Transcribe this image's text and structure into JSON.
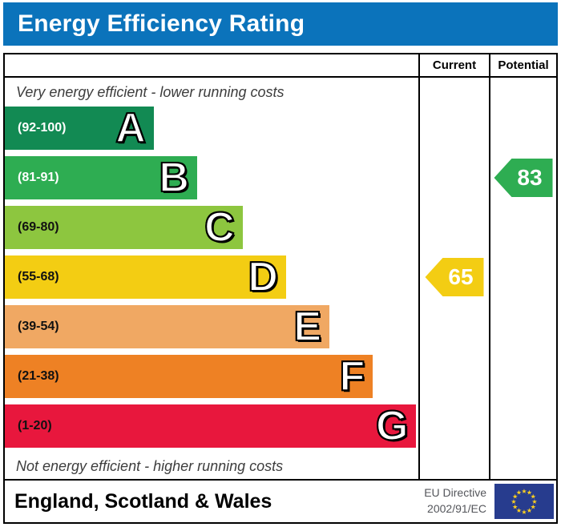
{
  "title_bar": {
    "title": "Energy Efficiency Rating",
    "bg_color": "#0b73bb",
    "text_color": "#ffffff"
  },
  "table": {
    "current_label": "Current",
    "potential_label": "Potential"
  },
  "notes": {
    "top": "Very energy efficient - lower running costs",
    "bottom": "Not energy efficient - higher running costs"
  },
  "chart_data": {
    "type": "bar",
    "title": "Energy Efficiency Rating",
    "categories": [
      "A",
      "B",
      "C",
      "D",
      "E",
      "F",
      "G"
    ],
    "bands": [
      {
        "letter": "A",
        "range_label": "(92-100)",
        "min": 92,
        "max": 100,
        "color": "#128a53",
        "label_color": "#ffffff",
        "width_pct": 36
      },
      {
        "letter": "B",
        "range_label": "(81-91)",
        "min": 81,
        "max": 91,
        "color": "#2ead52",
        "label_color": "#ffffff",
        "width_pct": 46.5
      },
      {
        "letter": "C",
        "range_label": "(69-80)",
        "min": 69,
        "max": 80,
        "color": "#8dc63f",
        "label_color": "#111111",
        "width_pct": 57.5
      },
      {
        "letter": "D",
        "range_label": "(55-68)",
        "min": 55,
        "max": 68,
        "color": "#f3cd13",
        "label_color": "#111111",
        "width_pct": 68
      },
      {
        "letter": "E",
        "range_label": "(39-54)",
        "min": 39,
        "max": 54,
        "color": "#f0a863",
        "label_color": "#111111",
        "width_pct": 78.5
      },
      {
        "letter": "F",
        "range_label": "(21-38)",
        "min": 21,
        "max": 38,
        "color": "#ee8124",
        "label_color": "#111111",
        "width_pct": 89
      },
      {
        "letter": "G",
        "range_label": "(1-20)",
        "min": 1,
        "max": 20,
        "color": "#e8173d",
        "label_color": "#111111",
        "width_pct": 99.5
      }
    ],
    "markers": {
      "current": {
        "value": 65,
        "band": "D",
        "color": "#f3cd13"
      },
      "potential": {
        "value": 83,
        "band": "B",
        "color": "#2ead52"
      }
    }
  },
  "footer": {
    "region": "England, Scotland & Wales",
    "directive_line1": "EU Directive",
    "directive_line2": "2002/91/EC"
  },
  "eu_flag": {
    "bg_color": "#273c8e",
    "star_color": "#fcd020",
    "star_count": 12,
    "star_glyph": "★"
  }
}
